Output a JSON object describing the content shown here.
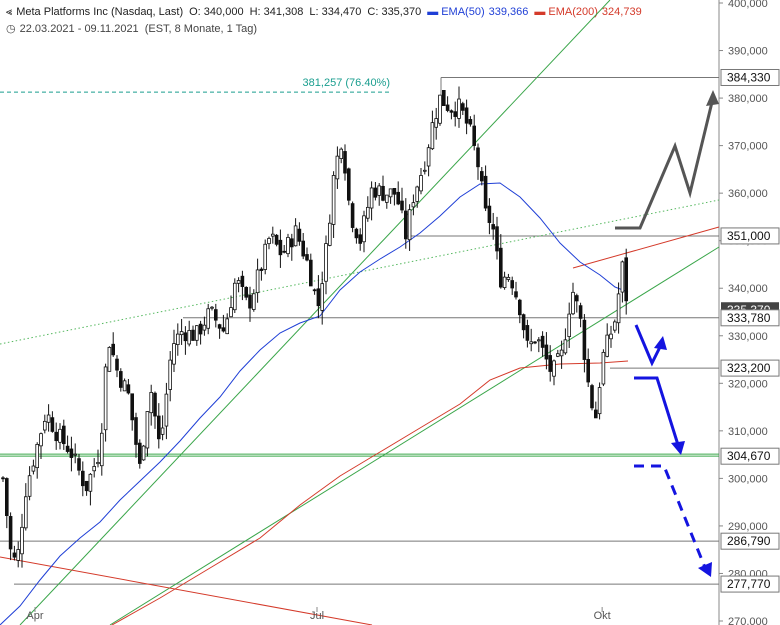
{
  "header": {
    "instrument": "Meta Platforms Inc (Nasdaq, Last)",
    "open": "O: 340,000",
    "high": "H: 341,308",
    "low": "L: 334,470",
    "close": "C: 335,370",
    "ema50_label": "EMA(50)",
    "ema50_value": "339,366",
    "ema200_label": "EMA(200)",
    "ema200_value": "324,739",
    "date_range": "22.03.2021 - 09.11.2021",
    "meta": "(EST, 8 Monate, 1 Tag)"
  },
  "colors": {
    "ema50": "#1f3fd6",
    "ema200": "#d43a2a",
    "trend_green": "#3aa64a",
    "fib_teal": "#1a9e8f",
    "projection_blue": "#1414e0",
    "projection_gray": "#555555"
  },
  "icons": [
    "chart-type-icon",
    "clock-icon"
  ],
  "chart_data": {
    "type": "candlestick",
    "y_axis": {
      "min": 270,
      "max": 400,
      "ticks": [
        "270,000",
        "280,000",
        "290,000",
        "300,000",
        "310,000",
        "320,000",
        "330,000",
        "340,000",
        "350,000",
        "360,000",
        "370,000",
        "380,000",
        "390,000",
        "400,000"
      ]
    },
    "x_axis": {
      "start": "22.03.2021",
      "end": "09.11.2021",
      "ticks": [
        {
          "label": "Apr",
          "date": "2021-04-01"
        },
        {
          "label": "Jul",
          "date": "2021-07-01"
        },
        {
          "label": "Okt",
          "date": "2021-10-01"
        }
      ]
    },
    "levels": [
      {
        "value": 384.33,
        "label": "384,330"
      },
      {
        "value": 351.0,
        "label": "351,000"
      },
      {
        "value": 333.78,
        "label": "333,780"
      },
      {
        "value": 323.2,
        "label": "323,200"
      },
      {
        "value": 304.67,
        "label": "304,670"
      },
      {
        "value": 286.79,
        "label": "286,790"
      },
      {
        "value": 277.77,
        "label": "277,770"
      }
    ],
    "fib_level": {
      "value": 381.257,
      "label": "381,257 (76.40%)"
    },
    "last_price_tag": "335,370",
    "grid": false,
    "legend": "top-left"
  }
}
